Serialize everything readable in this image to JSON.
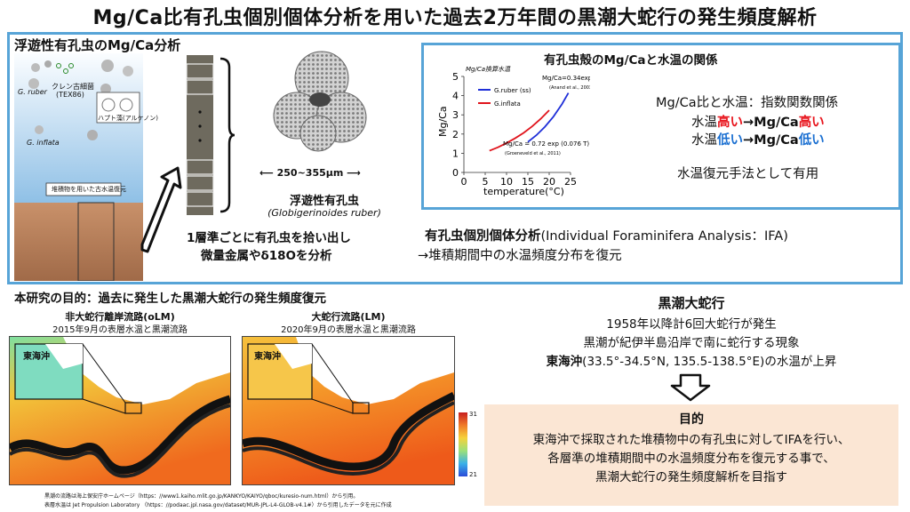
{
  "title": "Mg/Ca比有孔虫個別個体分析を用いた過去2万年間の黒潮大蛇行の発生頻度解析",
  "top_panel": {
    "heading": "浮遊性有孔虫のMg/Ca分析",
    "sea_labels": {
      "g_ruber": "G. ruber",
      "tex": "クレン古細菌",
      "tex_sub": "(TEX86)",
      "haptophyte": "ハプト藻(アルケノン)",
      "g_inflata": "G. inflata",
      "sediment": "堆積物を用いた古水温復元"
    },
    "size_label": "250~355μm",
    "foram_name": "浮遊性有孔虫",
    "foram_latin": "(Globigerinoides ruber)",
    "pick_line1": "1層準ごとに有孔虫を拾い出し",
    "pick_line2": "微量金属やδ18Oを分析",
    "ifa_line1_prefix": "有孔虫個別個体分析",
    "ifa_line1_rest": "(Individual Foraminifera Analysis：IFA)",
    "ifa_line2": "→堆積期間中の水温頻度分布を復元"
  },
  "mgca_box": {
    "heading": "有孔虫殻のMg/Caと水温の関係",
    "rel_line1": "Mg/Ca比と水温：指数関数関係",
    "rel_line2_a": "水温",
    "rel_line2_b": "高い",
    "rel_line2_c": "→Mg/Ca",
    "rel_line2_d": "高い",
    "rel_line3_a": "水温",
    "rel_line3_b": "低い",
    "rel_line3_c": "→Mg/Ca",
    "rel_line3_d": "低い",
    "rel_line4": "水温復元手法として有用"
  },
  "chart_data": {
    "type": "line",
    "title": "Mg/Ca換算水温",
    "xlabel": "temperature(°C)",
    "ylabel": "Mg/Ca",
    "xlim": [
      0,
      25
    ],
    "ylim": [
      0,
      5
    ],
    "xticks": [
      0,
      5,
      10,
      15,
      20,
      25
    ],
    "yticks": [
      0,
      1,
      2,
      3,
      4,
      5
    ],
    "legend": "top-left",
    "series": [
      {
        "name": "G.ruber (ss)",
        "color": "#1f2fd8",
        "x": [
          15,
          17,
          19,
          21,
          23,
          24.5
        ],
        "y": [
          1.59,
          1.94,
          2.38,
          2.91,
          3.56,
          4.14
        ]
      },
      {
        "name": "G.inflata",
        "color": "#e0141c",
        "x": [
          6,
          8,
          10,
          12,
          14,
          16,
          18,
          20
        ],
        "y": [
          1.13,
          1.31,
          1.53,
          1.78,
          2.06,
          2.4,
          2.79,
          3.24
        ]
      }
    ],
    "annotations": {
      "ruber_eq": "Mg/Ca=0.34exp(0.102T)",
      "ruber_ref": "(Anand et al., 2003)",
      "inflata_eq": "Mg/Ca = 0.72 exp (0.076 T)",
      "inflata_ref": "(Groeneveld et al., 2011)"
    }
  },
  "purpose": {
    "heading": "本研究の目的：過去に発生した黒潮大蛇行の発生頻度復元",
    "map1_title": "非大蛇行離岸流路(oLM)",
    "map1_sub": "2015年9月の表層水温と黒潮流路",
    "map2_title": "大蛇行流路(LM)",
    "map2_sub": "2020年9月の表層水温と黒潮流路",
    "inset_label": "東海沖",
    "colorbar_max": "31",
    "colorbar_min": "21",
    "credit1": "黒潮の流路は海上保安庁ホームページ（https：//www1.kaiho.mlit.go.jp/KANKYO/KAIYO/qboc/kuresio-num.html）から引用。",
    "credit2": "表層水温は Jet Propulsion Laboratory （https：//podaac.jpl.nasa.gov/dataset/MUR-JPL-L4-GLOB-v4.1#）から引用したデータを元に作成"
  },
  "kuroshio": {
    "heading": "黒潮大蛇行",
    "line1": "1958年以降計6回大蛇行が発生",
    "line2": "黒潮が紀伊半島沿岸で南に蛇行する現象",
    "line3_bold": "東海沖",
    "line3_coords": "(33.5°-34.5°N, 135.5-138.5°E)",
    "line3_rest": "の水温が上昇"
  },
  "goal": {
    "heading": "目的",
    "line1": "東海沖で採取された堆積物中の有孔虫に対してIFAを行い、",
    "line2": "各層準の堆積期間中の水温頻度分布を復元する事で、",
    "line3": "黒潮大蛇行の発生頻度解析を目指す"
  }
}
